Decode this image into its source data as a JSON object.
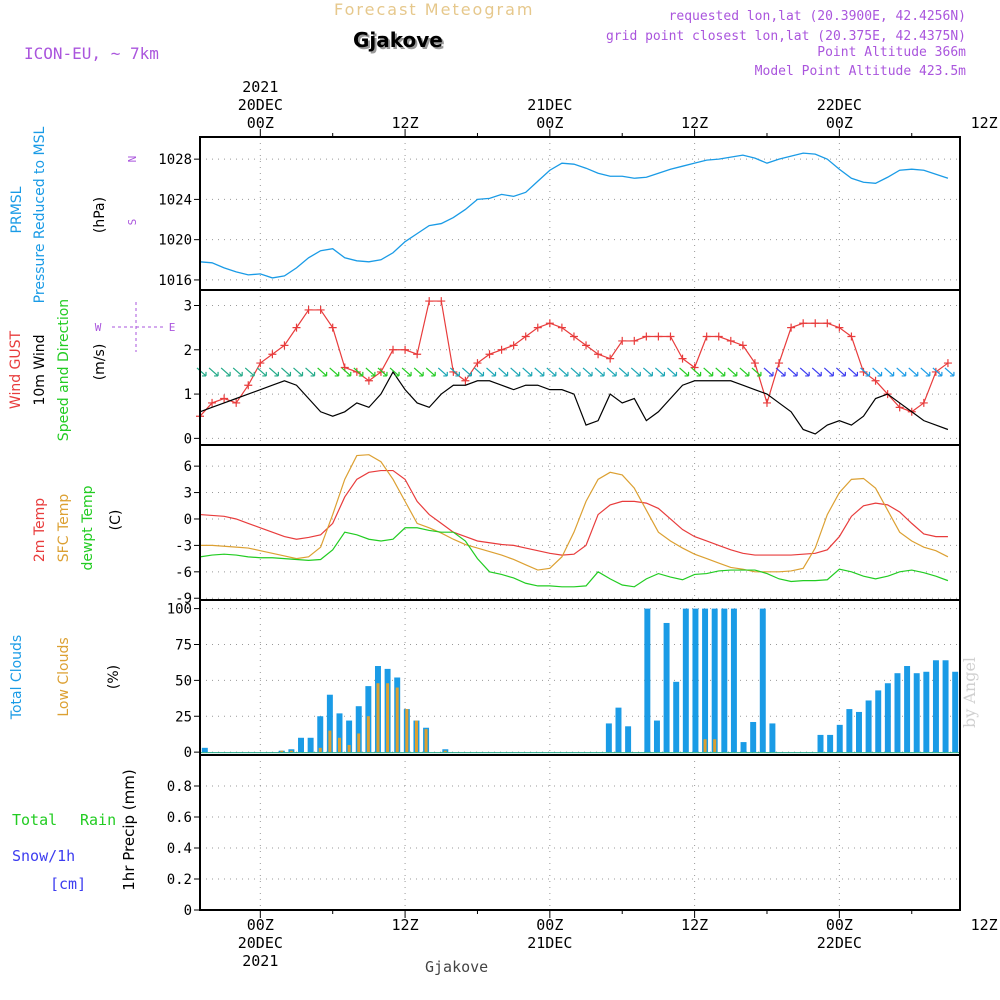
{
  "header": {
    "forecast_title": "Forecast Meteogram",
    "location": "Gjakove",
    "model": "ICON-EU, ~ 7km",
    "requested": "requested lon,lat (20.3900E, 42.4256N)",
    "grid_point": "grid point closest lon,lat (20.375E, 42.4375N)",
    "point_altitude": "Point Altitude 366m",
    "model_altitude": "Model Point Altitude 423.5m"
  },
  "footer_label": "Gjakove",
  "watermark": "by Angel",
  "colors": {
    "pressure": "#1a9be6",
    "gust": "#e83c3c",
    "wind": "#000000",
    "temp2m": "#e83c3c",
    "sfc": "#dca032",
    "dewpt": "#22cc22",
    "total_clouds": "#1a9be6",
    "low_clouds": "#dca032",
    "rain": "#22cc22",
    "snow": "#3c3cf0",
    "title_gold": "#e6c88c",
    "meta_purple": "#aa55dd"
  },
  "time_axis": {
    "start_hour": -5,
    "end_hour": 58,
    "top_labels": [
      {
        "hour": 0,
        "lines": [
          "2021",
          "20DEC",
          "00Z"
        ]
      },
      {
        "hour": 12,
        "lines": [
          "12Z"
        ]
      },
      {
        "hour": 24,
        "lines": [
          "21DEC",
          "00Z"
        ]
      },
      {
        "hour": 36,
        "lines": [
          "12Z"
        ]
      },
      {
        "hour": 48,
        "lines": [
          "22DEC",
          "00Z"
        ]
      },
      {
        "hour": 60,
        "lines": [
          "12Z"
        ]
      }
    ],
    "bottom_labels": [
      {
        "hour": 0,
        "lines": [
          "00Z",
          "20DEC",
          "2021"
        ]
      },
      {
        "hour": 12,
        "lines": [
          "12Z"
        ]
      },
      {
        "hour": 24,
        "lines": [
          "00Z",
          "21DEC"
        ]
      },
      {
        "hour": 36,
        "lines": [
          "12Z"
        ]
      },
      {
        "hour": 48,
        "lines": [
          "00Z",
          "22DEC"
        ]
      },
      {
        "hour": 60,
        "lines": [
          "12Z"
        ]
      }
    ]
  },
  "chart_data": [
    {
      "type": "line",
      "panel": "pressure",
      "ylabel_lines": [
        "PRMSL",
        "Pressure Reduced to MSL"
      ],
      "unit": "(hPa)",
      "ylim": [
        1015,
        1030.2
      ],
      "yticks": [
        1016,
        1020,
        1024,
        1028
      ],
      "series": [
        {
          "name": "PRMSL",
          "values": [
            1017.8,
            1017.7,
            1017.2,
            1016.8,
            1016.5,
            1016.6,
            1016.2,
            1016.4,
            1017.2,
            1018.2,
            1018.9,
            1019.1,
            1018.2,
            1017.9,
            1017.8,
            1018.0,
            1018.7,
            1019.8,
            1020.6,
            1021.4,
            1021.6,
            1022.2,
            1023.0,
            1024.0,
            1024.1,
            1024.5,
            1024.3,
            1024.7,
            1025.8,
            1026.9,
            1027.6,
            1027.5,
            1027.1,
            1026.6,
            1026.3,
            1026.3,
            1026.1,
            1026.2,
            1026.6,
            1027.0,
            1027.3,
            1027.6,
            1027.9,
            1028.0,
            1028.2,
            1028.4,
            1028.1,
            1027.6,
            1028.0,
            1028.3,
            1028.6,
            1028.5,
            1028.0,
            1027.0,
            1026.1,
            1025.7,
            1025.6,
            1026.2,
            1026.9,
            1027.0,
            1026.9,
            1026.5,
            1026.1
          ]
        }
      ]
    },
    {
      "type": "line",
      "panel": "wind",
      "ylabel_lines": [
        "Wind GUST",
        "10m Wind",
        "Speed and Direction"
      ],
      "unit": "(m/s)",
      "compass": [
        "N",
        "W",
        "E",
        "S"
      ],
      "ylim": [
        -0.15,
        3.35
      ],
      "yticks": [
        0,
        1,
        2,
        3
      ],
      "series": [
        {
          "name": "Wind GUST",
          "values": [
            0.5,
            0.8,
            0.9,
            0.8,
            1.2,
            1.7,
            1.9,
            2.1,
            2.5,
            2.9,
            2.9,
            2.5,
            1.6,
            1.5,
            1.3,
            1.5,
            2.0,
            2.0,
            1.9,
            3.1,
            3.1,
            1.5,
            1.3,
            1.7,
            1.9,
            2.0,
            2.1,
            2.3,
            2.5,
            2.6,
            2.5,
            2.3,
            2.1,
            1.9,
            1.8,
            2.2,
            2.2,
            2.3,
            2.3,
            2.3,
            1.8,
            1.6,
            2.3,
            2.3,
            2.2,
            2.1,
            1.7,
            0.8,
            1.7,
            2.5,
            2.6,
            2.6,
            2.6,
            2.5,
            2.3,
            1.5,
            1.3,
            1.0,
            0.7,
            0.6,
            0.8,
            1.5,
            1.7
          ]
        },
        {
          "name": "10m Wind",
          "values": [
            0.6,
            0.7,
            0.8,
            0.9,
            1.0,
            1.1,
            1.2,
            1.3,
            1.2,
            0.9,
            0.6,
            0.5,
            0.6,
            0.8,
            0.7,
            1.0,
            1.5,
            1.1,
            0.8,
            0.7,
            1.0,
            1.2,
            1.2,
            1.3,
            1.3,
            1.2,
            1.1,
            1.2,
            1.2,
            1.1,
            1.1,
            1.0,
            0.3,
            0.4,
            1.0,
            0.8,
            0.9,
            0.4,
            0.6,
            0.9,
            1.2,
            1.3,
            1.3,
            1.3,
            1.3,
            1.2,
            1.1,
            1.0,
            0.8,
            0.6,
            0.2,
            0.1,
            0.3,
            0.4,
            0.3,
            0.5,
            0.9,
            1.0,
            0.8,
            0.6,
            0.4,
            0.3,
            0.2
          ]
        }
      ]
    },
    {
      "type": "line",
      "panel": "temperature",
      "ylabel_lines": [
        "2m Temp",
        "SFC Temp",
        "dewpt Temp"
      ],
      "unit": "(C)",
      "ylim": [
        -9.2,
        8.4
      ],
      "yticks": [
        -9,
        -6,
        -3,
        0,
        3,
        6
      ],
      "series": [
        {
          "name": "2m Temp",
          "values": [
            0.5,
            0.4,
            0.3,
            0.0,
            -0.5,
            -1.0,
            -1.5,
            -2.0,
            -2.3,
            -2.1,
            -1.8,
            -0.5,
            2.5,
            4.5,
            5.3,
            5.5,
            5.5,
            4.5,
            2.0,
            0.5,
            -0.5,
            -1.5,
            -2.0,
            -2.5,
            -2.7,
            -2.9,
            -3.0,
            -3.3,
            -3.6,
            -3.9,
            -4.1,
            -4.0,
            -3.0,
            0.5,
            1.6,
            2.0,
            2.0,
            1.8,
            1.2,
            0.0,
            -1.2,
            -2.0,
            -2.5,
            -3.0,
            -3.5,
            -3.9,
            -4.1,
            -4.1,
            -4.1,
            -4.1,
            -4.0,
            -3.9,
            -3.5,
            -2.0,
            0.3,
            1.5,
            1.8,
            1.6,
            0.8,
            -0.5,
            -1.7,
            -2.0,
            -2.0
          ]
        },
        {
          "name": "SFC Temp",
          "values": [
            -3.0,
            -3.0,
            -3.1,
            -3.2,
            -3.3,
            -3.6,
            -3.9,
            -4.2,
            -4.5,
            -4.3,
            -3.2,
            0.5,
            4.5,
            7.2,
            7.3,
            6.5,
            4.5,
            2.0,
            -0.5,
            -1.0,
            -1.6,
            -2.3,
            -2.9,
            -3.3,
            -3.7,
            -4.1,
            -4.6,
            -5.2,
            -5.8,
            -5.6,
            -4.3,
            -1.5,
            2.0,
            4.5,
            5.3,
            5.0,
            3.5,
            1.0,
            -1.5,
            -2.5,
            -3.3,
            -4.0,
            -4.5,
            -5.0,
            -5.5,
            -5.7,
            -6.0,
            -6.0,
            -6.0,
            -5.9,
            -5.6,
            -3.3,
            0.5,
            3.0,
            4.5,
            4.6,
            3.5,
            1.0,
            -1.5,
            -2.5,
            -3.2,
            -3.6,
            -4.3
          ]
        },
        {
          "name": "dewpt Temp",
          "values": [
            -4.3,
            -4.1,
            -4.0,
            -4.1,
            -4.3,
            -4.4,
            -4.4,
            -4.5,
            -4.6,
            -4.7,
            -4.6,
            -3.5,
            -1.5,
            -1.8,
            -2.3,
            -2.5,
            -2.3,
            -1.0,
            -1.0,
            -1.3,
            -1.5,
            -1.5,
            -2.5,
            -4.5,
            -6.0,
            -6.3,
            -6.7,
            -7.3,
            -7.6,
            -7.6,
            -7.7,
            -7.7,
            -7.6,
            -6.0,
            -6.8,
            -7.5,
            -7.7,
            -6.8,
            -6.2,
            -6.6,
            -6.9,
            -6.3,
            -6.2,
            -5.9,
            -5.8,
            -5.8,
            -5.8,
            -6.2,
            -6.8,
            -7.1,
            -7.0,
            -7.0,
            -6.9,
            -5.7,
            -6.0,
            -6.5,
            -6.8,
            -6.5,
            -6.0,
            -5.8,
            -6.1,
            -6.5,
            -7.0
          ]
        }
      ]
    },
    {
      "type": "bar",
      "panel": "clouds",
      "ylabel_lines": [
        "Total Clouds",
        "Low Clouds"
      ],
      "unit": "(%)",
      "ylim": [
        -2,
        106
      ],
      "yticks": [
        0,
        25,
        50,
        75,
        100
      ],
      "series": [
        {
          "name": "Total Clouds",
          "values": [
            3,
            0,
            0,
            0,
            0,
            0,
            0,
            0,
            1,
            2,
            10,
            10,
            25,
            40,
            27,
            22,
            32,
            46,
            60,
            58,
            52,
            30,
            22,
            17,
            0,
            2,
            0,
            0,
            0,
            0,
            0,
            0,
            0,
            0,
            0,
            0,
            0,
            0,
            0,
            0,
            0,
            0,
            20,
            31,
            18,
            0,
            100,
            22,
            90,
            49,
            100,
            100,
            100,
            100,
            100,
            100,
            7,
            21,
            100,
            20,
            0,
            0,
            0,
            0,
            12,
            12,
            19,
            30,
            28,
            36,
            43,
            48,
            55,
            60,
            55,
            56,
            64,
            64,
            56
          ]
        },
        {
          "name": "Low Clouds",
          "values": [
            0,
            0,
            0,
            0,
            0,
            0,
            0,
            0,
            1,
            1,
            0,
            0,
            3,
            15,
            10,
            5,
            13,
            25,
            48,
            48,
            45,
            30,
            22,
            16,
            0,
            1,
            0,
            0,
            0,
            0,
            0,
            0,
            0,
            0,
            0,
            0,
            0,
            0,
            0,
            0,
            0,
            0,
            0,
            0,
            0,
            0,
            0,
            0,
            0,
            0,
            0,
            0,
            9,
            9,
            0,
            0,
            0,
            0,
            0,
            0,
            0,
            0,
            0,
            0,
            0,
            0,
            0,
            0,
            0,
            0,
            0,
            0,
            0,
            0,
            0,
            0,
            0,
            0,
            0
          ]
        }
      ]
    },
    {
      "type": "bar",
      "panel": "precip",
      "ylabel": "1hr Precip (mm)",
      "legend": [
        "Total",
        "Rain",
        "Snow/1h",
        "[cm]"
      ],
      "ylim": [
        0,
        1
      ],
      "yticks": [
        "0",
        "0.2",
        "0.4",
        "0.6",
        "0.8"
      ],
      "series": [
        {
          "name": "Total Rain",
          "values": []
        },
        {
          "name": "Snow/1h",
          "values": []
        }
      ]
    }
  ]
}
